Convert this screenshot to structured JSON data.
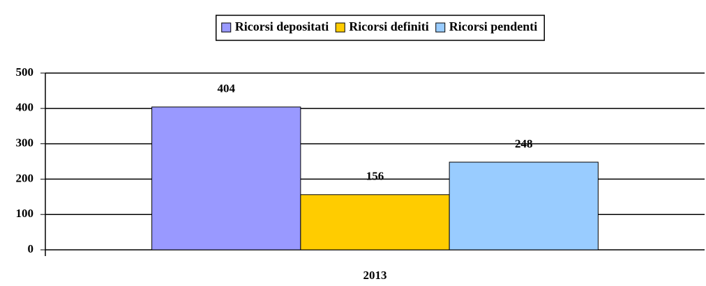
{
  "chart_data": {
    "type": "bar",
    "categories": [
      "2013"
    ],
    "series": [
      {
        "name": "Ricorsi depositati",
        "color": "#9999ff",
        "values": [
          404
        ]
      },
      {
        "name": "Ricorsi definiti",
        "color": "#ffcc00",
        "values": [
          156
        ]
      },
      {
        "name": "Ricorsi pendenti",
        "color": "#99ccff",
        "values": [
          248
        ]
      }
    ],
    "ylim": [
      0,
      500
    ],
    "yticks": [
      0,
      100,
      200,
      300,
      400,
      500
    ],
    "grid": true,
    "legend": "top"
  }
}
